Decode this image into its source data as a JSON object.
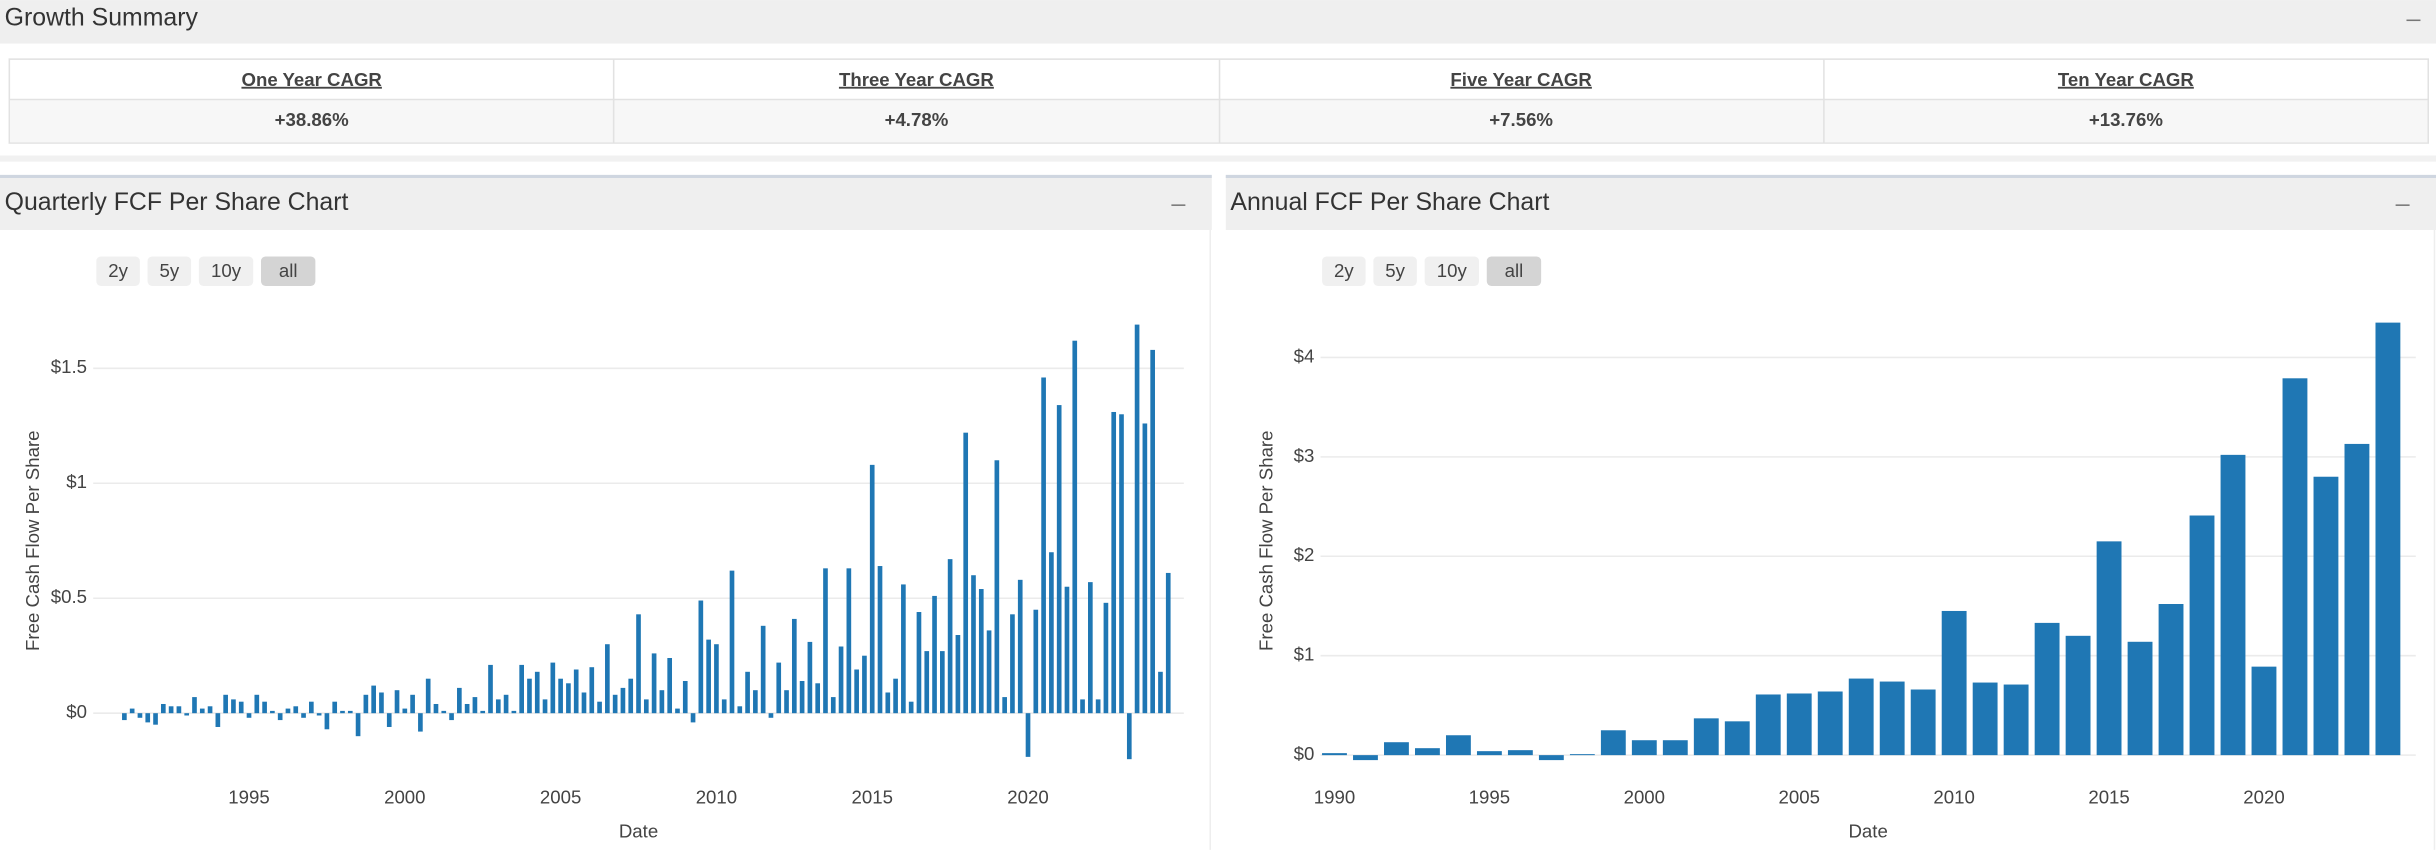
{
  "summary": {
    "title": "Growth Summary",
    "headers": [
      "One Year CAGR",
      "Three Year CAGR",
      "Five Year CAGR",
      "Ten Year CAGR"
    ],
    "values": [
      "+38.86%",
      "+4.78%",
      "+7.56%",
      "+13.76%"
    ]
  },
  "chart_data": [
    {
      "type": "bar",
      "title": "Quarterly FCF Per Share Chart",
      "buttons": [
        "2y",
        "5y",
        "10y",
        "all"
      ],
      "xlabel": "Date",
      "ylabel": "Free Cash Flow Per Share",
      "color": "#1f77b4",
      "grid": true,
      "xlim": [
        1990,
        2025
      ],
      "xticks": [
        1995,
        2000,
        2005,
        2010,
        2015,
        2020
      ],
      "ylim": [
        -0.2,
        1.75
      ],
      "yticks": [
        {
          "value": 0,
          "label": "$0"
        },
        {
          "value": 0.5,
          "label": "$0.5"
        },
        {
          "value": 1,
          "label": "$1"
        },
        {
          "value": 1.5,
          "label": "$1.5"
        }
      ],
      "x": [
        1991,
        1991.25,
        1991.5,
        1991.75,
        1992,
        1992.25,
        1992.5,
        1992.75,
        1993,
        1993.25,
        1993.5,
        1993.75,
        1994,
        1994.25,
        1994.5,
        1994.75,
        1995,
        1995.25,
        1995.5,
        1995.75,
        1996,
        1996.25,
        1996.5,
        1996.75,
        1997,
        1997.25,
        1997.5,
        1997.75,
        1998,
        1998.25,
        1998.5,
        1998.75,
        1999,
        1999.25,
        1999.5,
        1999.75,
        2000,
        2000.25,
        2000.5,
        2000.75,
        2001,
        2001.25,
        2001.5,
        2001.75,
        2002,
        2002.25,
        2002.5,
        2002.75,
        2003,
        2003.25,
        2003.5,
        2003.75,
        2004,
        2004.25,
        2004.5,
        2004.75,
        2005,
        2005.25,
        2005.5,
        2005.75,
        2006,
        2006.25,
        2006.5,
        2006.75,
        2007,
        2007.25,
        2007.5,
        2007.75,
        2008,
        2008.25,
        2008.5,
        2008.75,
        2009,
        2009.25,
        2009.5,
        2009.75,
        2010,
        2010.25,
        2010.5,
        2010.75,
        2011,
        2011.25,
        2011.5,
        2011.75,
        2012,
        2012.25,
        2012.5,
        2012.75,
        2013,
        2013.25,
        2013.5,
        2013.75,
        2014,
        2014.25,
        2014.5,
        2014.75,
        2015,
        2015.25,
        2015.5,
        2015.75,
        2016,
        2016.25,
        2016.5,
        2016.75,
        2017,
        2017.25,
        2017.5,
        2017.75,
        2018,
        2018.25,
        2018.5,
        2018.75,
        2019,
        2019.25,
        2019.5,
        2019.75,
        2020,
        2020.25,
        2020.5,
        2020.75,
        2021,
        2021.25,
        2021.5,
        2021.75,
        2022,
        2022.25,
        2022.5,
        2022.75,
        2023,
        2023.25,
        2023.5,
        2023.75,
        2024,
        2024.25,
        2024.5
      ],
      "values": [
        -0.03,
        0.02,
        -0.02,
        -0.04,
        -0.05,
        0.04,
        0.03,
        0.03,
        -0.01,
        0.07,
        0.02,
        0.03,
        -0.06,
        0.08,
        0.06,
        0.05,
        -0.02,
        0.08,
        0.05,
        0.01,
        -0.03,
        0.02,
        0.03,
        -0.02,
        0.05,
        -0.01,
        -0.07,
        0.05,
        0.01,
        0.01,
        -0.1,
        0.08,
        0.12,
        0.09,
        -0.06,
        0.1,
        0.02,
        0.08,
        -0.08,
        0.15,
        0.04,
        0.01,
        -0.03,
        0.11,
        0.04,
        0.07,
        0.01,
        0.21,
        0.06,
        0.08,
        0.01,
        0.21,
        0.15,
        0.18,
        0.06,
        0.22,
        0.15,
        0.13,
        0.19,
        0.09,
        0.2,
        0.05,
        0.3,
        0.08,
        0.11,
        0.15,
        0.43,
        0.06,
        0.26,
        0.1,
        0.24,
        0.02,
        0.14,
        -0.04,
        0.49,
        0.32,
        0.3,
        0.06,
        0.62,
        0.03,
        0.18,
        0.1,
        0.38,
        -0.02,
        0.22,
        0.1,
        0.41,
        0.14,
        0.31,
        0.13,
        0.63,
        0.07,
        0.29,
        0.63,
        0.19,
        0.25,
        1.08,
        0.64,
        0.09,
        0.15,
        0.56,
        0.05,
        0.44,
        0.27,
        0.51,
        0.27,
        0.67,
        0.34,
        1.22,
        0.6,
        0.54,
        0.36,
        1.1,
        0.07,
        0.43,
        0.58,
        -0.19,
        0.45,
        1.46,
        0.7,
        1.34,
        0.55,
        1.62,
        0.06,
        0.57,
        0.06,
        0.48,
        1.31,
        1.3,
        -0.2,
        1.69,
        1.26,
        1.58,
        0.18,
        0.61
      ]
    },
    {
      "type": "bar",
      "title": "Annual FCF Per Share Chart",
      "buttons": [
        "2y",
        "5y",
        "10y",
        "all"
      ],
      "xlabel": "Date",
      "ylabel": "Free Cash Flow Per Share",
      "color": "#1f77b4",
      "grid": true,
      "xlim": [
        1989.55,
        2024.9
      ],
      "xticks": [
        1990,
        1995,
        2000,
        2005,
        2010,
        2015,
        2020
      ],
      "ylim": [
        -0.2,
        4.45
      ],
      "yticks": [
        {
          "value": 0,
          "label": "$0"
        },
        {
          "value": 1,
          "label": "$1"
        },
        {
          "value": 2,
          "label": "$2"
        },
        {
          "value": 3,
          "label": "$3"
        },
        {
          "value": 4,
          "label": "$4"
        }
      ],
      "x": [
        1990,
        1991,
        1992,
        1993,
        1994,
        1995,
        1996,
        1997,
        1998,
        1999,
        2000,
        2001,
        2002,
        2003,
        2004,
        2005,
        2006,
        2007,
        2008,
        2009,
        2010,
        2011,
        2012,
        2013,
        2014,
        2015,
        2016,
        2017,
        2018,
        2019,
        2020,
        2021,
        2022,
        2023,
        2024
      ],
      "values": [
        0.02,
        -0.05,
        0.13,
        0.07,
        0.2,
        0.04,
        0.05,
        -0.05,
        0.01,
        0.25,
        0.15,
        0.15,
        0.37,
        0.34,
        0.61,
        0.62,
        0.64,
        0.77,
        0.74,
        0.66,
        1.45,
        0.73,
        0.71,
        1.33,
        1.2,
        2.15,
        1.14,
        1.52,
        2.41,
        3.02,
        0.89,
        3.79,
        2.8,
        3.13,
        4.35
      ]
    }
  ]
}
